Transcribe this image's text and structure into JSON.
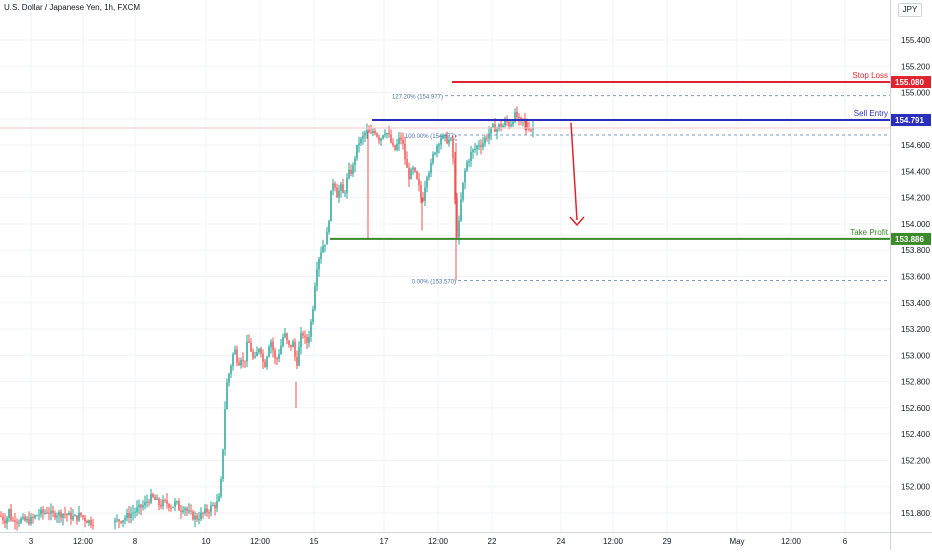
{
  "chart_data": {
    "type": "candlestick",
    "title": "U.S. Dollar / Japanese Yen, 1h, FXCM",
    "currency": "JPY",
    "ylim": [
      151.68,
      155.57
    ],
    "y_ticks": [
      "151.800",
      "152.000",
      "152.200",
      "152.400",
      "152.600",
      "152.800",
      "153.000",
      "153.200",
      "153.400",
      "153.600",
      "153.800",
      "154.000",
      "154.200",
      "154.400",
      "154.600",
      "154.800",
      "155.000",
      "155.200",
      "155.400"
    ],
    "x_ticks": [
      "3",
      "12:00",
      "8",
      "10",
      "12:00",
      "15",
      "17",
      "12:00",
      "22",
      "24",
      "12:00",
      "29",
      "May",
      "12:00",
      "6"
    ],
    "price_levels": [
      {
        "name": "Stop Loss",
        "value": 155.08,
        "label": "155.080",
        "color": "#e0232e"
      },
      {
        "name": "Sell Entry",
        "value": 154.791,
        "label": "154.791",
        "color": "#2a2ebd"
      },
      {
        "name": "Take Profit",
        "value": 153.886,
        "label": "153.886",
        "color": "#3a8a2a"
      }
    ],
    "fibonacci": [
      {
        "label": "127.20% (154.977)",
        "value": 154.977
      },
      {
        "label": "100.00% (154.677)",
        "value": 154.677
      },
      {
        "label": "0.00% (153.570)",
        "value": 153.57
      }
    ],
    "colors": {
      "up": "#26a69a",
      "down": "#ef5350",
      "grid": "#f0f3fa"
    },
    "anchors": [
      [
        0,
        151.78
      ],
      [
        3,
        151.76
      ],
      [
        6,
        151.74
      ],
      [
        9,
        151.82
      ],
      [
        12,
        151.73
      ],
      [
        15,
        151.76
      ],
      [
        18,
        151.74
      ],
      [
        20,
        151.75
      ],
      [
        24,
        151.74
      ],
      [
        28,
        151.74
      ],
      [
        32,
        151.75
      ],
      [
        36,
        151.78
      ],
      [
        40,
        151.8
      ],
      [
        44,
        151.8
      ],
      [
        48,
        151.82
      ],
      [
        52,
        151.78
      ],
      [
        56,
        151.8
      ],
      [
        60,
        151.79
      ],
      [
        64,
        151.8
      ],
      [
        68,
        151.78
      ],
      [
        72,
        151.77
      ],
      [
        76,
        151.76
      ],
      [
        80,
        151.79
      ],
      [
        84,
        151.76
      ],
      [
        88,
        151.74
      ],
      [
        92,
        151.73
      ],
      [
        115,
        151.73
      ],
      [
        120,
        151.75
      ],
      [
        124,
        151.76
      ],
      [
        128,
        151.78
      ],
      [
        132,
        151.8
      ],
      [
        136,
        151.82
      ],
      [
        140,
        151.84
      ],
      [
        144,
        151.86
      ],
      [
        148,
        151.9
      ],
      [
        152,
        151.92
      ],
      [
        156,
        151.89
      ],
      [
        160,
        151.86
      ],
      [
        164,
        151.88
      ],
      [
        168,
        151.87
      ],
      [
        172,
        151.85
      ],
      [
        176,
        151.88
      ],
      [
        180,
        151.82
      ],
      [
        184,
        151.86
      ],
      [
        188,
        151.8
      ],
      [
        192,
        151.78
      ],
      [
        196,
        151.76
      ],
      [
        200,
        151.78
      ],
      [
        204,
        151.8
      ],
      [
        208,
        151.82
      ],
      [
        212,
        151.85
      ],
      [
        216,
        151.86
      ],
      [
        220,
        151.92
      ],
      [
        222,
        152.15
      ],
      [
        224,
        152.45
      ],
      [
        226,
        152.75
      ],
      [
        228,
        152.82
      ],
      [
        230,
        152.9
      ],
      [
        232,
        152.96
      ],
      [
        234,
        153.05
      ],
      [
        236,
        153.02
      ],
      [
        238,
        152.93
      ],
      [
        240,
        152.98
      ],
      [
        242,
        153.0
      ],
      [
        244,
        152.9
      ],
      [
        246,
        153.05
      ],
      [
        248,
        153.1
      ],
      [
        250,
        153.08
      ],
      [
        252,
        153.0
      ],
      [
        254,
        152.95
      ],
      [
        256,
        152.98
      ],
      [
        258,
        153.05
      ],
      [
        260,
        153.08
      ],
      [
        262,
        153.0
      ],
      [
        264,
        152.9
      ],
      [
        266,
        152.97
      ],
      [
        268,
        153.05
      ],
      [
        270,
        153.12
      ],
      [
        272,
        153.1
      ],
      [
        274,
        152.98
      ],
      [
        276,
        152.95
      ],
      [
        278,
        153.0
      ],
      [
        280,
        153.05
      ],
      [
        282,
        153.1
      ],
      [
        284,
        153.18
      ],
      [
        286,
        153.12
      ],
      [
        288,
        153.08
      ],
      [
        290,
        153.05
      ],
      [
        292,
        153.1
      ],
      [
        294,
        153.08
      ],
      [
        296,
        152.9
      ],
      [
        298,
        153.0
      ],
      [
        300,
        153.1
      ],
      [
        302,
        153.18
      ],
      [
        304,
        153.15
      ],
      [
        306,
        153.08
      ],
      [
        308,
        153.12
      ],
      [
        310,
        153.2
      ],
      [
        312,
        153.3
      ],
      [
        314,
        153.45
      ],
      [
        316,
        153.65
      ],
      [
        318,
        153.72
      ],
      [
        320,
        153.78
      ],
      [
        322,
        153.82
      ],
      [
        324,
        153.85
      ],
      [
        326,
        153.88
      ],
      [
        328,
        153.95
      ],
      [
        330,
        154.15
      ],
      [
        332,
        154.3
      ],
      [
        334,
        154.35
      ],
      [
        336,
        154.25
      ],
      [
        338,
        154.2
      ],
      [
        340,
        154.3
      ],
      [
        342,
        154.25
      ],
      [
        344,
        154.2
      ],
      [
        346,
        154.32
      ],
      [
        348,
        154.35
      ],
      [
        350,
        154.42
      ],
      [
        352,
        154.38
      ],
      [
        354,
        154.48
      ],
      [
        356,
        154.55
      ],
      [
        358,
        154.6
      ],
      [
        360,
        154.65
      ],
      [
        362,
        154.62
      ],
      [
        364,
        154.7
      ],
      [
        366,
        154.68
      ],
      [
        368,
        154.72
      ],
      [
        370,
        154.65
      ],
      [
        372,
        154.7
      ],
      [
        374,
        154.72
      ],
      [
        376,
        154.7
      ],
      [
        378,
        154.66
      ],
      [
        380,
        154.65
      ],
      [
        382,
        154.67
      ],
      [
        384,
        154.72
      ],
      [
        386,
        154.7
      ],
      [
        388,
        154.68
      ],
      [
        390,
        154.64
      ],
      [
        392,
        154.6
      ],
      [
        394,
        154.55
      ],
      [
        396,
        154.58
      ],
      [
        398,
        154.62
      ],
      [
        400,
        154.66
      ],
      [
        402,
        154.64
      ],
      [
        404,
        154.55
      ],
      [
        406,
        154.45
      ],
      [
        408,
        154.38
      ],
      [
        410,
        154.35
      ],
      [
        412,
        154.42
      ],
      [
        414,
        154.4
      ],
      [
        416,
        154.35
      ],
      [
        418,
        154.3
      ],
      [
        420,
        154.25
      ],
      [
        422,
        154.15
      ],
      [
        424,
        154.25
      ],
      [
        426,
        154.35
      ],
      [
        428,
        154.42
      ],
      [
        430,
        154.4
      ],
      [
        432,
        154.48
      ],
      [
        434,
        154.55
      ],
      [
        436,
        154.58
      ],
      [
        438,
        154.62
      ],
      [
        440,
        154.65
      ],
      [
        442,
        154.67
      ],
      [
        444,
        154.64
      ],
      [
        446,
        154.66
      ],
      [
        448,
        154.62
      ],
      [
        450,
        154.65
      ],
      [
        452,
        154.6
      ],
      [
        454,
        154.4
      ],
      [
        456,
        153.95
      ],
      [
        458,
        153.9
      ],
      [
        460,
        154.1
      ],
      [
        462,
        154.25
      ],
      [
        464,
        154.35
      ],
      [
        466,
        154.45
      ],
      [
        468,
        154.48
      ],
      [
        470,
        154.52
      ],
      [
        472,
        154.55
      ],
      [
        474,
        154.56
      ],
      [
        476,
        154.58
      ],
      [
        478,
        154.6
      ],
      [
        480,
        154.62
      ],
      [
        482,
        154.6
      ],
      [
        484,
        154.64
      ],
      [
        486,
        154.66
      ],
      [
        488,
        154.68
      ],
      [
        490,
        154.7
      ],
      [
        492,
        154.72
      ],
      [
        494,
        154.74
      ],
      [
        496,
        154.72
      ],
      [
        498,
        154.73
      ],
      [
        500,
        154.76
      ],
      [
        502,
        154.74
      ],
      [
        504,
        154.76
      ],
      [
        506,
        154.78
      ],
      [
        508,
        154.77
      ],
      [
        510,
        154.75
      ],
      [
        512,
        154.79
      ],
      [
        514,
        154.82
      ],
      [
        516,
        154.83
      ],
      [
        518,
        154.8
      ],
      [
        520,
        154.76
      ],
      [
        522,
        154.78
      ],
      [
        524,
        154.8
      ],
      [
        526,
        154.72
      ],
      [
        528,
        154.75
      ],
      [
        530,
        154.73
      ],
      [
        532,
        154.72
      ],
      [
        534,
        154.74
      ]
    ]
  }
}
